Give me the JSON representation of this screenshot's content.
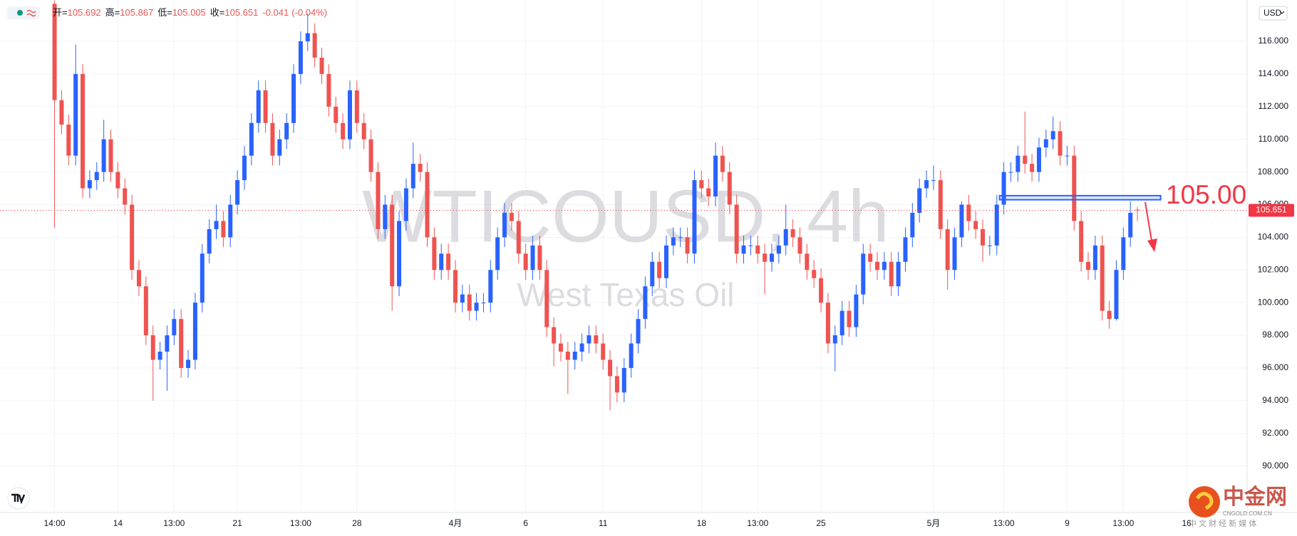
{
  "chart_data": {
    "type": "candlestick",
    "symbol_tag": "USD",
    "header": {
      "ohlc_labels": [
        "开=",
        "高=",
        "低=",
        "收="
      ],
      "change": "-0.041",
      "change_pct": "(-0.04%)"
    },
    "watermark": "WTICOUSD, 4h",
    "watermark_subtitle": "West Texas Oil",
    "up_color": "#2962ff",
    "down_color": "#ef5350",
    "grid": true,
    "candles": [
      [
        118.3,
        118.5,
        104.6,
        112.4
      ],
      [
        112.4,
        113,
        110.3,
        110.9
      ],
      [
        110.9,
        111.5,
        108.4,
        109
      ],
      [
        109,
        115.8,
        108.4,
        114
      ],
      [
        114,
        114.6,
        106.4,
        107
      ],
      [
        107,
        108.1,
        106.4,
        107.5
      ],
      [
        107.5,
        108.6,
        106.9,
        108
      ],
      [
        108,
        111.2,
        107.4,
        110
      ],
      [
        110,
        110.6,
        107.4,
        108
      ],
      [
        108,
        108.6,
        106.4,
        107
      ],
      [
        107,
        107.6,
        105.4,
        106
      ],
      [
        106,
        106.6,
        101.4,
        102
      ],
      [
        102,
        102.6,
        100.4,
        101
      ],
      [
        101,
        101.6,
        97.4,
        98
      ],
      [
        98,
        98.6,
        94,
        96.5
      ],
      [
        96.5,
        97.6,
        95.9,
        97
      ],
      [
        97,
        98.6,
        94.6,
        98
      ],
      [
        98,
        99.6,
        97.4,
        99
      ],
      [
        99,
        99.6,
        95.4,
        96
      ],
      [
        96,
        97.1,
        95.4,
        96.5
      ],
      [
        96.5,
        100.6,
        95.9,
        100
      ],
      [
        100,
        103.6,
        99.4,
        103
      ],
      [
        103,
        105.1,
        102.4,
        104.5
      ],
      [
        104.5,
        106,
        103.9,
        105
      ],
      [
        105,
        105.6,
        103.4,
        104
      ],
      [
        104,
        106.6,
        103.4,
        106
      ],
      [
        106,
        108.1,
        105.4,
        107.5
      ],
      [
        107.5,
        109.6,
        106.9,
        109
      ],
      [
        109,
        111.6,
        108.4,
        111
      ],
      [
        111,
        113.6,
        110.4,
        113
      ],
      [
        113,
        113.6,
        110.4,
        111
      ],
      [
        111,
        111.6,
        108.4,
        109
      ],
      [
        109,
        110.6,
        108.4,
        110
      ],
      [
        110,
        111.6,
        109.4,
        111
      ],
      [
        111,
        114.6,
        110.4,
        114
      ],
      [
        114,
        116.6,
        113.4,
        116
      ],
      [
        116,
        117.7,
        115.4,
        116.5
      ],
      [
        116.5,
        117.1,
        114.4,
        115
      ],
      [
        115,
        115.6,
        113.4,
        114
      ],
      [
        114,
        114.6,
        111.4,
        112
      ],
      [
        112,
        112.6,
        110.4,
        111
      ],
      [
        111,
        111.6,
        109.4,
        110
      ],
      [
        110,
        113.6,
        109.4,
        113
      ],
      [
        113,
        113.6,
        110.4,
        111
      ],
      [
        111,
        111.6,
        109.4,
        110
      ],
      [
        110,
        110.6,
        107.4,
        108
      ],
      [
        108,
        108.6,
        103.9,
        104.5
      ],
      [
        104.5,
        106.6,
        103.9,
        106
      ],
      [
        106,
        106.6,
        99.5,
        101
      ],
      [
        101,
        105.6,
        100.4,
        105
      ],
      [
        105,
        107.6,
        104.4,
        107
      ],
      [
        107,
        109.8,
        106.4,
        108.5
      ],
      [
        108.5,
        109.1,
        107.4,
        108
      ],
      [
        108,
        108.6,
        103.4,
        104
      ],
      [
        104,
        104.6,
        101.4,
        102
      ],
      [
        102,
        103.6,
        101.4,
        103
      ],
      [
        103,
        103.6,
        101.4,
        102
      ],
      [
        102,
        102.6,
        99.4,
        100
      ],
      [
        100,
        101.1,
        99.4,
        100.5
      ],
      [
        100.5,
        101.1,
        98.9,
        99.5
      ],
      [
        99.5,
        100.6,
        98.9,
        100
      ],
      [
        100,
        100.6,
        99.4,
        100
      ],
      [
        100,
        102.6,
        99.4,
        102
      ],
      [
        102,
        104.6,
        101.4,
        104
      ],
      [
        104,
        106.1,
        103.4,
        105.5
      ],
      [
        105.5,
        106.1,
        104.4,
        105
      ],
      [
        105,
        105.6,
        102.4,
        103
      ],
      [
        103,
        103.6,
        101.4,
        102
      ],
      [
        102,
        104.1,
        101.4,
        103.5
      ],
      [
        103.5,
        104.1,
        101.4,
        102
      ],
      [
        102,
        102.6,
        97.9,
        98.5
      ],
      [
        98.5,
        99.1,
        96.1,
        97.5
      ],
      [
        97.5,
        98.1,
        96.4,
        97
      ],
      [
        97,
        97.6,
        94.4,
        96.5
      ],
      [
        96.5,
        97.6,
        95.9,
        97
      ],
      [
        97,
        98.1,
        96.4,
        97.5
      ],
      [
        97.5,
        98.6,
        96.9,
        98
      ],
      [
        98,
        98.6,
        96.9,
        97.5
      ],
      [
        97.5,
        98.1,
        95.9,
        96.5
      ],
      [
        96.5,
        97.1,
        93.4,
        95.5
      ],
      [
        95.5,
        96.1,
        93.9,
        94.5
      ],
      [
        94.5,
        96.6,
        93.9,
        96
      ],
      [
        96,
        98.1,
        95.4,
        97.5
      ],
      [
        97.5,
        99.6,
        96.9,
        99
      ],
      [
        99,
        101.6,
        98.4,
        101
      ],
      [
        101,
        103.1,
        100.4,
        102.5
      ],
      [
        102.5,
        103.1,
        100.9,
        101.5
      ],
      [
        101.5,
        104.1,
        100.9,
        103.5
      ],
      [
        103.5,
        104.6,
        102.9,
        104
      ],
      [
        104,
        104.6,
        103.4,
        104
      ],
      [
        104,
        104.6,
        102.4,
        103
      ],
      [
        103,
        108.1,
        102.4,
        107.5
      ],
      [
        107.5,
        108.1,
        106.4,
        107
      ],
      [
        107,
        107.6,
        105.9,
        106.5
      ],
      [
        106.5,
        109.8,
        105.9,
        109
      ],
      [
        109,
        109.6,
        107.4,
        108
      ],
      [
        108,
        108.6,
        105.4,
        106
      ],
      [
        106,
        106.6,
        102.4,
        103
      ],
      [
        103,
        104.1,
        102.4,
        103.5
      ],
      [
        103.5,
        104.1,
        102.9,
        103.5
      ],
      [
        103.5,
        104.1,
        102.4,
        103
      ],
      [
        103,
        103.6,
        100.5,
        102.5
      ],
      [
        102.5,
        103.6,
        101.9,
        103
      ],
      [
        103,
        104.1,
        102.4,
        103.5
      ],
      [
        103.5,
        106,
        102.9,
        104.5
      ],
      [
        104.5,
        105.1,
        103.4,
        104
      ],
      [
        104,
        104.6,
        102.4,
        103
      ],
      [
        103,
        103.6,
        101.4,
        102
      ],
      [
        102,
        102.6,
        100.9,
        101.5
      ],
      [
        101.5,
        102.1,
        99.4,
        100
      ],
      [
        100,
        100.6,
        96.9,
        97.5
      ],
      [
        97.5,
        98.6,
        95.8,
        98
      ],
      [
        98,
        100.1,
        97.4,
        99.5
      ],
      [
        99.5,
        100.1,
        97.9,
        98.5
      ],
      [
        98.5,
        101.1,
        97.9,
        100.5
      ],
      [
        100.5,
        103.6,
        99.9,
        103
      ],
      [
        103,
        103.6,
        101.9,
        102.5
      ],
      [
        102.5,
        103.1,
        101.4,
        102
      ],
      [
        102,
        103.1,
        101.4,
        102.5
      ],
      [
        102.5,
        103.1,
        100.4,
        101
      ],
      [
        101,
        103.1,
        100.4,
        102.5
      ],
      [
        102.5,
        104.6,
        101.9,
        104
      ],
      [
        104,
        106.1,
        103.4,
        105.5
      ],
      [
        105.5,
        107.6,
        104.9,
        107
      ],
      [
        107,
        108.1,
        106.4,
        107.5
      ],
      [
        107.5,
        108.4,
        106.9,
        107.5
      ],
      [
        107.5,
        108.1,
        103.9,
        104.5
      ],
      [
        104.5,
        105.1,
        100.8,
        102
      ],
      [
        102,
        104.6,
        101.4,
        104
      ],
      [
        104,
        106.2,
        103.4,
        106
      ],
      [
        106,
        106.6,
        104.4,
        105
      ],
      [
        105,
        105.6,
        103.9,
        104.5
      ],
      [
        104.5,
        105.1,
        102.5,
        103.5
      ],
      [
        103.5,
        104.1,
        102.9,
        103.5
      ],
      [
        103.5,
        106.6,
        102.9,
        106
      ],
      [
        106,
        108.6,
        105.4,
        108
      ],
      [
        108,
        108.6,
        107.4,
        108
      ],
      [
        108,
        109.6,
        107.4,
        109
      ],
      [
        109,
        111.7,
        107.9,
        108.5
      ],
      [
        108.5,
        109.1,
        107.4,
        108
      ],
      [
        108,
        110.1,
        107.4,
        109.5
      ],
      [
        109.5,
        110.6,
        108.9,
        110
      ],
      [
        110,
        111.4,
        109.4,
        110.5
      ],
      [
        110.5,
        111.1,
        108.4,
        109
      ],
      [
        109,
        109.6,
        108.4,
        109
      ],
      [
        109,
        109.6,
        104.4,
        105
      ],
      [
        105,
        105.6,
        101.9,
        102.5
      ],
      [
        102.5,
        103.1,
        101.4,
        102
      ],
      [
        102,
        104.1,
        101.4,
        103.5
      ],
      [
        103.5,
        104.1,
        98.9,
        99.5
      ],
      [
        99.5,
        100.1,
        98.4,
        99
      ],
      [
        99,
        102.6,
        98.9,
        102
      ],
      [
        102,
        104.6,
        101.4,
        104
      ],
      [
        104,
        106.2,
        103.4,
        105.5
      ],
      [
        105.692,
        105.867,
        105.005,
        105.651
      ]
    ],
    "xlim": [
      -7.76,
      169.6
    ],
    "xticks": [
      {
        "value": 0,
        "label": "14:00"
      },
      {
        "value": 9,
        "label": "14"
      },
      {
        "value": 17,
        "label": "13:00"
      },
      {
        "value": 26,
        "label": "21"
      },
      {
        "value": 35,
        "label": "13:00"
      },
      {
        "value": 43,
        "label": "28"
      },
      {
        "value": 57,
        "label": "4月"
      },
      {
        "value": 67,
        "label": "6"
      },
      {
        "value": 78,
        "label": "11"
      },
      {
        "value": 92,
        "label": "18"
      },
      {
        "value": 100,
        "label": "13:00"
      },
      {
        "value": 109,
        "label": "25"
      },
      {
        "value": 125,
        "label": "5月"
      },
      {
        "value": 135,
        "label": "13:00"
      },
      {
        "value": 144,
        "label": "9"
      },
      {
        "value": 152,
        "label": "13:00"
      },
      {
        "value": 161,
        "label": "16"
      }
    ],
    "ylim": [
      87.15,
      118.53
    ],
    "yticks": [
      {
        "value": 90,
        "label": "90.000"
      },
      {
        "value": 92,
        "label": "92.000"
      },
      {
        "value": 94,
        "label": "94.000"
      },
      {
        "value": 96,
        "label": "96.000"
      },
      {
        "value": 98,
        "label": "98.000"
      },
      {
        "value": 100,
        "label": "100.000"
      },
      {
        "value": 102,
        "label": "102.000"
      },
      {
        "value": 104,
        "label": "104.000"
      },
      {
        "value": 106,
        "label": "106.000"
      },
      {
        "value": 108,
        "label": "108.000"
      },
      {
        "value": 110,
        "label": "110.000"
      },
      {
        "value": 112,
        "label": "112.000"
      },
      {
        "value": 114,
        "label": "114.000"
      },
      {
        "value": 116,
        "label": "116.000"
      }
    ],
    "last_price_color": "#f23645",
    "annotation": {
      "label": "105.00",
      "zone": [
        106.3,
        106.55
      ],
      "from": 134.4,
      "to": 157.3,
      "color": "#f23645",
      "zone_color": "#2962ff"
    }
  },
  "branding": {
    "name": "中金网",
    "domain": "CNGOLD.COM.CN",
    "tagline": "中 文 财 经 新 媒 体"
  }
}
